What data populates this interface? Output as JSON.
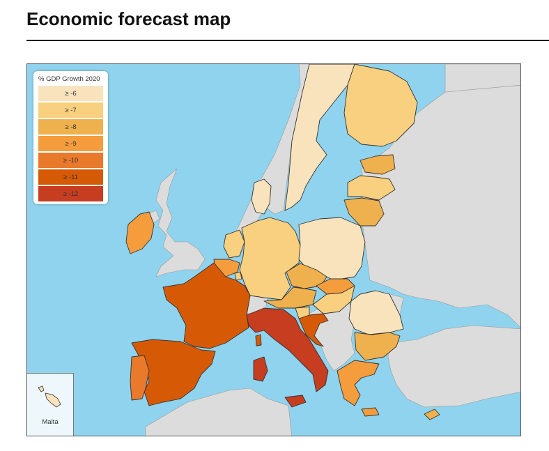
{
  "page": {
    "title": "Economic forecast map"
  },
  "legend": {
    "title": "% GDP Growth 2020",
    "items": [
      {
        "label": "≥ -6",
        "color": "#f9e3bd"
      },
      {
        "label": "≥ -7",
        "color": "#f8d07f"
      },
      {
        "label": "≥ -8",
        "color": "#eeb14d"
      },
      {
        "label": "≥ -9",
        "color": "#f59d3d"
      },
      {
        "label": "≥ -10",
        "color": "#e97a2b"
      },
      {
        "label": "≥ -11",
        "color": "#d65a05"
      },
      {
        "label": "≥ -12",
        "color": "#c63d20"
      }
    ]
  },
  "colors": {
    "sea": "#8fd3ee",
    "non_member_land": "#dcdcdc",
    "border": "#333333"
  },
  "inset": {
    "label": "Malta"
  },
  "regions": [
    {
      "id": "sweden",
      "bin": "≥ -6"
    },
    {
      "id": "finland",
      "bin": "≥ -7"
    },
    {
      "id": "estonia",
      "bin": "≥ -8"
    },
    {
      "id": "latvia",
      "bin": "≥ -7"
    },
    {
      "id": "lithuania",
      "bin": "≥ -8"
    },
    {
      "id": "denmark",
      "bin": "≥ -6"
    },
    {
      "id": "ireland",
      "bin": "≥ -9"
    },
    {
      "id": "netherlands",
      "bin": "≥ -7"
    },
    {
      "id": "belgium",
      "bin": "≥ -9"
    },
    {
      "id": "luxembourg",
      "bin": "≥ -7"
    },
    {
      "id": "germany",
      "bin": "≥ -7"
    },
    {
      "id": "poland",
      "bin": "≥ -6"
    },
    {
      "id": "czechia",
      "bin": "≥ -8"
    },
    {
      "id": "slovakia",
      "bin": "≥ -9"
    },
    {
      "id": "austria",
      "bin": "≥ -8"
    },
    {
      "id": "hungary",
      "bin": "≥ -7"
    },
    {
      "id": "slovenia",
      "bin": "≥ -7"
    },
    {
      "id": "croatia",
      "bin": "≥ -11"
    },
    {
      "id": "romania",
      "bin": "≥ -6"
    },
    {
      "id": "bulgaria",
      "bin": "≥ -8"
    },
    {
      "id": "greece",
      "bin": "≥ -9"
    },
    {
      "id": "cyprus",
      "bin": "≥ -8"
    },
    {
      "id": "italy",
      "bin": "≥ -12"
    },
    {
      "id": "france",
      "bin": "≥ -11"
    },
    {
      "id": "spain",
      "bin": "≥ -11"
    },
    {
      "id": "portugal",
      "bin": "≥ -10"
    },
    {
      "id": "malta",
      "bin": "≥ -6"
    }
  ]
}
